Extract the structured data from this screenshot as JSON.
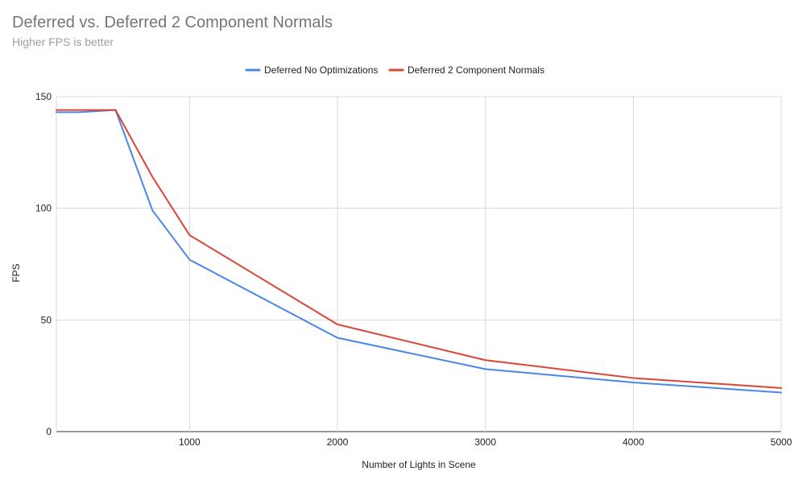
{
  "chart_data": {
    "type": "line",
    "title": "Deferred vs. Deferred 2 Component Normals",
    "subtitle": "Higher FPS is better",
    "xlabel": "Number of Lights in Scene",
    "ylabel": "FPS",
    "xlim": [
      100,
      5000
    ],
    "ylim": [
      0,
      150
    ],
    "xticks": [
      1000,
      2000,
      3000,
      4000,
      5000
    ],
    "yticks": [
      0,
      50,
      100,
      150
    ],
    "grid": true,
    "legend_position": "top",
    "x": [
      100,
      250,
      500,
      750,
      1000,
      2000,
      3000,
      4000,
      5000
    ],
    "series": [
      {
        "name": "Deferred No Optimizations",
        "color": "#4a86e8",
        "values": [
          143,
          143,
          144,
          99,
          77,
          42,
          28,
          22,
          17.5
        ]
      },
      {
        "name": "Deferred 2 Component Normals",
        "color": "#db4437",
        "values": [
          144,
          144,
          144,
          114,
          88,
          48,
          32,
          24,
          19.5
        ]
      }
    ]
  }
}
